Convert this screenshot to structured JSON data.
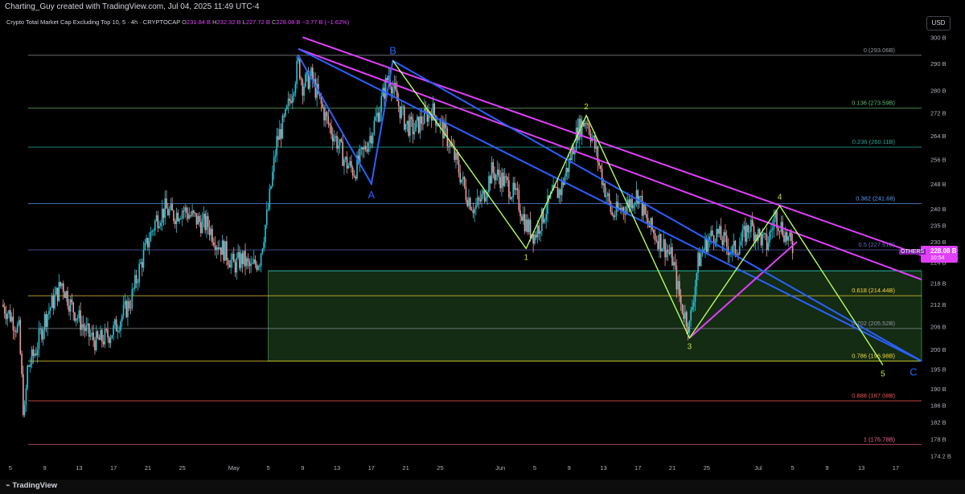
{
  "header": {
    "creator_line": "Charting_Guy created with TradingView.com, Jul 04, 2025 11:49 UTC-4",
    "symbol_line": "Crypto Total Market Cap Excluding Top 10, 5 · 4h · CRYPTOCAP",
    "ohlc": [
      {
        "k": "O",
        "v": "231.84 B"
      },
      {
        "k": "H",
        "v": "232.32 B"
      },
      {
        "k": "L",
        "v": "227.72 B"
      },
      {
        "k": "C",
        "v": "228.08 B"
      },
      {
        "k": "",
        "v": "−3.77 B (−1.62%)"
      }
    ],
    "currency": "USD"
  },
  "footer": {
    "brand": "TradingView"
  },
  "price_badge": {
    "name": "OTHERS",
    "value": "228.08 B",
    "countdown": "10:54"
  },
  "colors": {
    "background": "#000000",
    "up": "#26c6da",
    "down": "#ef9a9a",
    "pink_trend": "#e040fb",
    "blue_trend": "#2962ff",
    "wave": "#b2ff59",
    "wave_label_blue": "#2962ff",
    "wave_label_green": "#c6e619",
    "zone": "#1b3a1b"
  },
  "chart_data": {
    "type": "candlestick",
    "title": "Crypto Total Market Cap Excluding Top 10",
    "timeframe": "4h",
    "ylim": [
      173,
      302
    ],
    "y_scale": "log",
    "y_ticks": [
      "300 B",
      "290 B",
      "280 B",
      "272 B",
      "264 B",
      "256 B",
      "248 B",
      "240 B",
      "235 B",
      "230 B",
      "224 B",
      "218 B",
      "212 B",
      "206 B",
      "200 B",
      "195 B",
      "190 B",
      "186 B",
      "182 B",
      "178 B",
      "174.2 B"
    ],
    "y_tick_values": [
      300,
      290,
      280,
      272,
      264,
      256,
      248,
      240,
      235,
      230,
      224,
      218,
      212,
      206,
      200,
      195,
      190,
      186,
      182,
      178,
      174.2
    ],
    "x_ticks": [
      "5",
      "9",
      "13",
      "17",
      "21",
      "25",
      "May",
      "5",
      "9",
      "13",
      "17",
      "21",
      "25",
      "Jun",
      "5",
      "9",
      "13",
      "17",
      "21",
      "25",
      "Jul",
      "5",
      "9",
      "13",
      "17"
    ],
    "x_tick_days": [
      95,
      99,
      103,
      107,
      111,
      115,
      121,
      125,
      129,
      133,
      137,
      141,
      145,
      152,
      156,
      160,
      164,
      168,
      172,
      176,
      182,
      186,
      190,
      194,
      198
    ],
    "x_range_days": [
      93.8,
      201
    ],
    "price_path_keypoints": [
      {
        "day": 94,
        "close": 212
      },
      {
        "day": 95,
        "close": 209
      },
      {
        "day": 96,
        "close": 205
      },
      {
        "day": 96.6,
        "close": 182
      },
      {
        "day": 97,
        "close": 195
      },
      {
        "day": 98,
        "close": 200
      },
      {
        "day": 99,
        "close": 208
      },
      {
        "day": 100,
        "close": 213
      },
      {
        "day": 101,
        "close": 218
      },
      {
        "day": 102,
        "close": 212
      },
      {
        "day": 103,
        "close": 208
      },
      {
        "day": 104,
        "close": 204
      },
      {
        "day": 105,
        "close": 202
      },
      {
        "day": 106,
        "close": 203
      },
      {
        "day": 107,
        "close": 205
      },
      {
        "day": 108,
        "close": 209
      },
      {
        "day": 109,
        "close": 213
      },
      {
        "day": 110,
        "close": 222
      },
      {
        "day": 111,
        "close": 230
      },
      {
        "day": 112,
        "close": 237
      },
      {
        "day": 113,
        "close": 240
      },
      {
        "day": 114,
        "close": 238
      },
      {
        "day": 115,
        "close": 240
      },
      {
        "day": 116,
        "close": 238
      },
      {
        "day": 117,
        "close": 236
      },
      {
        "day": 118,
        "close": 235
      },
      {
        "day": 119,
        "close": 230
      },
      {
        "day": 120,
        "close": 227
      },
      {
        "day": 121,
        "close": 223
      },
      {
        "day": 122,
        "close": 225
      },
      {
        "day": 123,
        "close": 222
      },
      {
        "day": 124,
        "close": 225
      },
      {
        "day": 125,
        "close": 240
      },
      {
        "day": 126,
        "close": 262
      },
      {
        "day": 127,
        "close": 270
      },
      {
        "day": 128,
        "close": 283
      },
      {
        "day": 128.5,
        "close": 290
      },
      {
        "day": 129,
        "close": 282
      },
      {
        "day": 130,
        "close": 285
      },
      {
        "day": 131,
        "close": 276
      },
      {
        "day": 132,
        "close": 268
      },
      {
        "day": 133,
        "close": 262
      },
      {
        "day": 134,
        "close": 255
      },
      {
        "day": 135,
        "close": 252
      },
      {
        "day": 136,
        "close": 258
      },
      {
        "day": 137,
        "close": 265
      },
      {
        "day": 138,
        "close": 274
      },
      {
        "day": 139,
        "close": 286
      },
      {
        "day": 140,
        "close": 276
      },
      {
        "day": 141,
        "close": 268
      },
      {
        "day": 142,
        "close": 266
      },
      {
        "day": 143,
        "close": 270
      },
      {
        "day": 144,
        "close": 273
      },
      {
        "day": 145,
        "close": 268
      },
      {
        "day": 146,
        "close": 262
      },
      {
        "day": 147,
        "close": 254
      },
      {
        "day": 148,
        "close": 245
      },
      {
        "day": 149,
        "close": 240
      },
      {
        "day": 150,
        "close": 244
      },
      {
        "day": 151,
        "close": 252
      },
      {
        "day": 152,
        "close": 250
      },
      {
        "day": 153,
        "close": 247
      },
      {
        "day": 154,
        "close": 243
      },
      {
        "day": 155,
        "close": 235
      },
      {
        "day": 156,
        "close": 232
      },
      {
        "day": 157,
        "close": 238
      },
      {
        "day": 158,
        "close": 244
      },
      {
        "day": 159,
        "close": 246
      },
      {
        "day": 160,
        "close": 255
      },
      {
        "day": 161,
        "close": 266
      },
      {
        "day": 162,
        "close": 270
      },
      {
        "day": 163,
        "close": 260
      },
      {
        "day": 164,
        "close": 248
      },
      {
        "day": 165,
        "close": 238
      },
      {
        "day": 166,
        "close": 240
      },
      {
        "day": 167,
        "close": 242
      },
      {
        "day": 168,
        "close": 245
      },
      {
        "day": 169,
        "close": 236
      },
      {
        "day": 170,
        "close": 232
      },
      {
        "day": 171,
        "close": 229
      },
      {
        "day": 172,
        "close": 225
      },
      {
        "day": 173,
        "close": 212
      },
      {
        "day": 174,
        "close": 206
      },
      {
        "day": 175,
        "close": 224
      },
      {
        "day": 176,
        "close": 230
      },
      {
        "day": 177,
        "close": 233
      },
      {
        "day": 178,
        "close": 230
      },
      {
        "day": 179,
        "close": 227
      },
      {
        "day": 180,
        "close": 230
      },
      {
        "day": 181,
        "close": 235
      },
      {
        "day": 182,
        "close": 232
      },
      {
        "day": 183,
        "close": 229
      },
      {
        "day": 184,
        "close": 238
      },
      {
        "day": 185,
        "close": 233
      },
      {
        "day": 186,
        "close": 228
      }
    ],
    "fib_levels": [
      {
        "label": "0 (293.06B)",
        "price": 293.06,
        "color": "#9598a1"
      },
      {
        "label": "0.136 (273.59B)",
        "price": 273.59,
        "color": "#66bb6a"
      },
      {
        "label": "0.236 (260.11B)",
        "price": 260.11,
        "color": "#26a69a"
      },
      {
        "label": "0.382 (241.68)",
        "price": 241.68,
        "color": "#5b9cf6"
      },
      {
        "label": "0.5 (227.61B)",
        "price": 227.61,
        "color": "#5c6bc0"
      },
      {
        "label": "0.618 (214.44B)",
        "price": 214.44,
        "color": "#fdd835"
      },
      {
        "label": "0.702 (205.52B)",
        "price": 205.52,
        "color": "#9598a1"
      },
      {
        "label": "0.786 (196.98B)",
        "price": 196.98,
        "color": "#fdd835"
      },
      {
        "label": "0.888 (187.08B)",
        "price": 187.08,
        "color": "#ef5350"
      },
      {
        "label": "1 (176.78B)",
        "price": 176.78,
        "color": "#f06292"
      }
    ],
    "zone": {
      "from_day": 125,
      "to_day": 201,
      "high": 221.5,
      "low": 196.98
    },
    "zone_top_line": 221.5,
    "abc_path": [
      {
        "day": 128.5,
        "price": 293,
        "label": ""
      },
      {
        "day": 137,
        "price": 248,
        "label": "A"
      },
      {
        "day": 139.5,
        "price": 291,
        "label": "B"
      },
      {
        "day": 201,
        "price": 197,
        "label": "C"
      }
    ],
    "wave_path": [
      {
        "day": 139.5,
        "price": 291,
        "label": ""
      },
      {
        "day": 155,
        "price": 228,
        "label": "1"
      },
      {
        "day": 162,
        "price": 271,
        "label": "2"
      },
      {
        "day": 174,
        "price": 203,
        "label": "3"
      },
      {
        "day": 184.5,
        "price": 241,
        "label": "4"
      },
      {
        "day": 196.5,
        "price": 196,
        "label": "5"
      }
    ],
    "trendlines": [
      {
        "color": "#e040fb",
        "from": {
          "day": 129,
          "price": 300
        },
        "to": {
          "day": 201,
          "price": 226
        }
      },
      {
        "color": "#e040fb",
        "from": {
          "day": 128.5,
          "price": 295.5
        },
        "to": {
          "day": 201,
          "price": 219
        }
      },
      {
        "color": "#2962ff",
        "from": {
          "day": 128.5,
          "price": 295.5
        },
        "to": {
          "day": 201,
          "price": 197
        }
      },
      {
        "color": "#e040fb",
        "from": {
          "day": 174,
          "price": 203
        },
        "to": {
          "day": 186.5,
          "price": 230
        }
      }
    ]
  }
}
